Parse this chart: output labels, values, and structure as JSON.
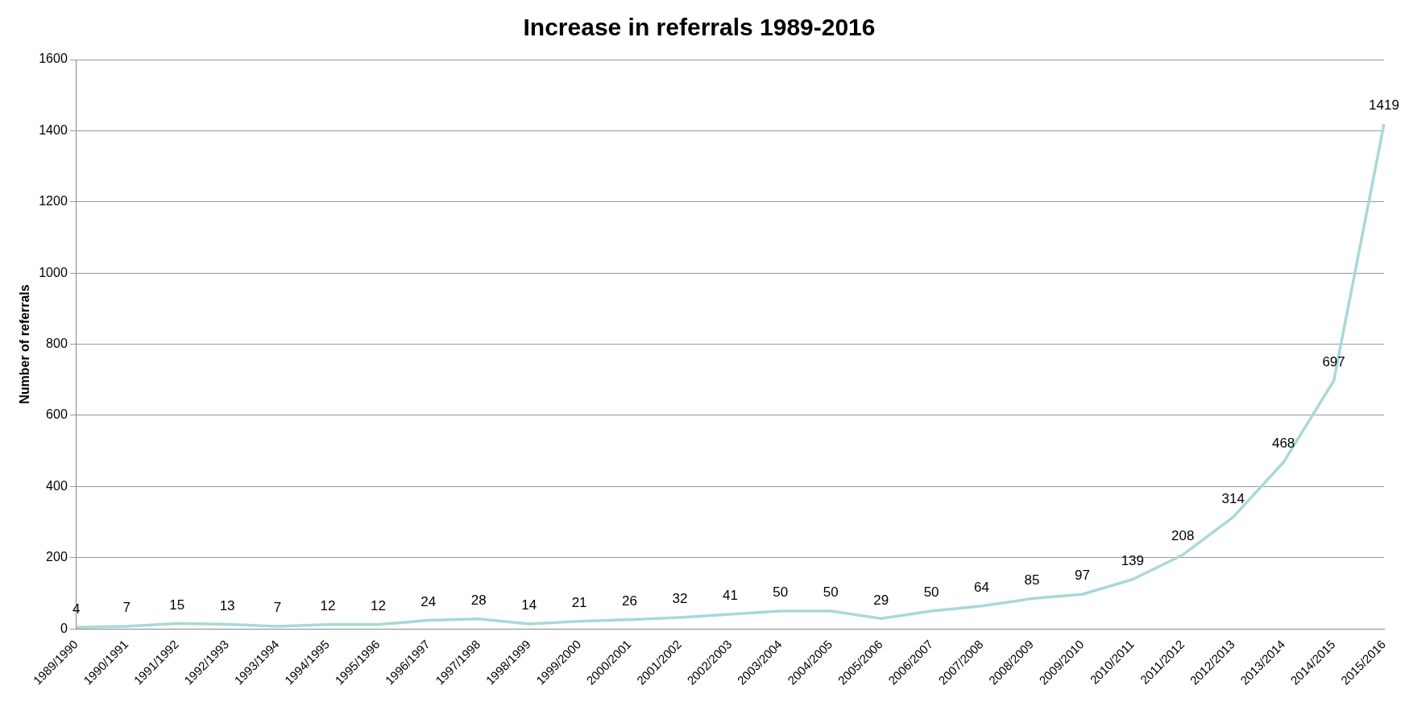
{
  "chart_data": {
    "type": "line",
    "title": "Increase in referrals 1989-2016",
    "ylabel": "Number of referrals",
    "categories": [
      "1989/1990",
      "1990/1991",
      "1991/1992",
      "1992/1993",
      "1993/1994",
      "1994/1995",
      "1995/1996",
      "1996/1997",
      "1997/1998",
      "1998/1999",
      "1999/2000",
      "2000/2001",
      "2001/2002",
      "2002/2003",
      "2003/2004",
      "2004/2005",
      "2005/2006",
      "2006/2007",
      "2007/2008",
      "2008/2009",
      "2009/2010",
      "2010/2011",
      "2011/2012",
      "2012/2013",
      "2013/2014",
      "2014/2015",
      "2015/2016"
    ],
    "series": [
      {
        "color": "#a9d8d8",
        "values": [
          4,
          7,
          15,
          13,
          7,
          12,
          12,
          24,
          28,
          14,
          21,
          26,
          32,
          41,
          50,
          50,
          29,
          50,
          64,
          85,
          97,
          139,
          208,
          314,
          468,
          697,
          1419
        ]
      }
    ],
    "ylim": [
      0,
      1600
    ],
    "yticks": [
      0,
      200,
      400,
      600,
      800,
      1000,
      1200,
      1400,
      1600
    ],
    "grid": "y",
    "legend": false,
    "marker": "none",
    "line_style": "solid",
    "data_labels": true
  }
}
